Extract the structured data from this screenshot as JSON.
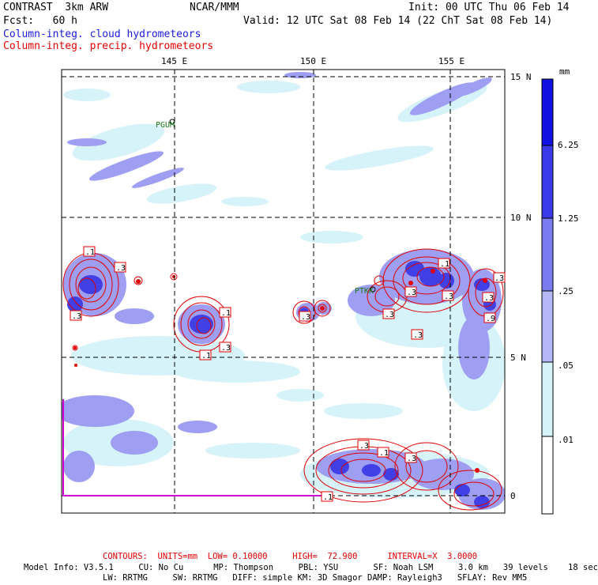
{
  "header": {
    "title_left": "CONTRAST  3km ARW",
    "title_center": "NCAR/MMM",
    "init": "Init: 00 UTC Thu 06 Feb 14",
    "fcst": "Fcst:   60 h",
    "valid": "Valid: 12 UTC Sat 08 Feb 14 (22 ChT Sat 08 Feb 14)",
    "field1": "Column-integ. cloud hydrometeors",
    "field2": "Column-integ. precip. hydrometeors"
  },
  "map": {
    "lon_labels": [
      "145 E",
      "150 E",
      "155 E"
    ],
    "lat_labels": [
      "15 N",
      "10 N",
      "5 N",
      "0"
    ],
    "stations": [
      "PGUM",
      "PTKK"
    ],
    "contour_labels": [
      ".1",
      ".3",
      ".3",
      ".1",
      ".3",
      ".1",
      ".3",
      ".3",
      ".3",
      ".1",
      ".3",
      ".3",
      ".3",
      ".3",
      ".9",
      ".3",
      ".1",
      ".3",
      ".1"
    ]
  },
  "colorbar": {
    "unit": "mm",
    "labels": [
      "6.25",
      "1.25",
      ".25",
      ".05",
      ".01"
    ],
    "colors": [
      "#1010e0",
      "#3a3ae8",
      "#7b7bf0",
      "#b4b8f6",
      "#d6f3fa",
      "#ffffff"
    ]
  },
  "footer": {
    "contours": "CONTOURS:  UNITS=mm  LOW= 0.10000     HIGH=  72.900      INTERVAL=X  3.0000",
    "model_info_1": "Model Info: V3.5.1     CU: No Cu      MP: Thompson     PBL: YSU       SF: Noah LSM     3.0 km   39 levels    18 sec",
    "model_info_2": "LW: RRTMG     SW: RRTMG   DIFF: simple KM: 3D Smagor DAMP: Rayleigh3   SFLAY: Rev MM5"
  },
  "colors": {
    "cloud": "#8c8cf0",
    "cloud_light": "#d6f3fa",
    "cloud_core": "#3a3ae8",
    "precip": "#e00000"
  }
}
